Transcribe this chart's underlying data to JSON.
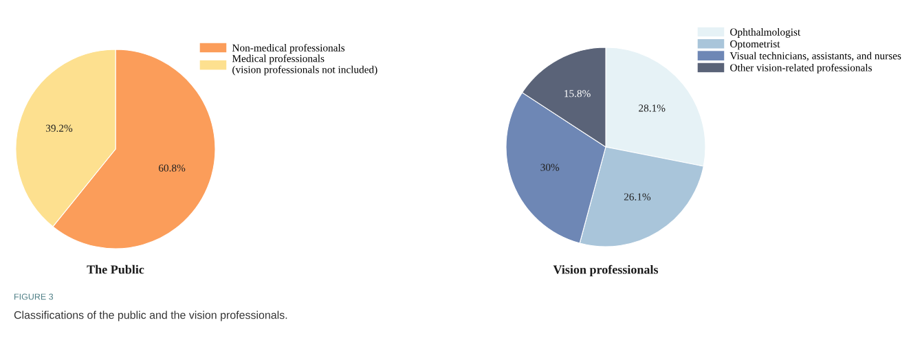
{
  "chart_data": [
    {
      "type": "pie",
      "title": "The Public",
      "categories": [
        "Non-medical professionals",
        "Medical professionals\n(vision professionals not included)"
      ],
      "values": [
        60.8,
        39.2
      ],
      "value_labels": [
        "60.8%",
        "39.2%"
      ],
      "colors": [
        "#fb9d5a",
        "#fde08f"
      ],
      "legend": "right",
      "annotations": [
        "FIGURE 3",
        "Classifications of the public and the vision professionals."
      ]
    },
    {
      "type": "pie",
      "title": "Vision professionals",
      "categories": [
        "Ophthalmologist",
        "Optometrist",
        "Visual technicians, assistants, and nurses",
        "Other vision-related professionals"
      ],
      "values": [
        28.1,
        26.1,
        30,
        15.8
      ],
      "value_labels": [
        "28.1%",
        "26.1%",
        "30%",
        "15.8%"
      ],
      "colors": [
        "#e6f2f6",
        "#a9c5da",
        "#6e87b5",
        "#5a6378"
      ],
      "legend": "top right"
    }
  ]
}
